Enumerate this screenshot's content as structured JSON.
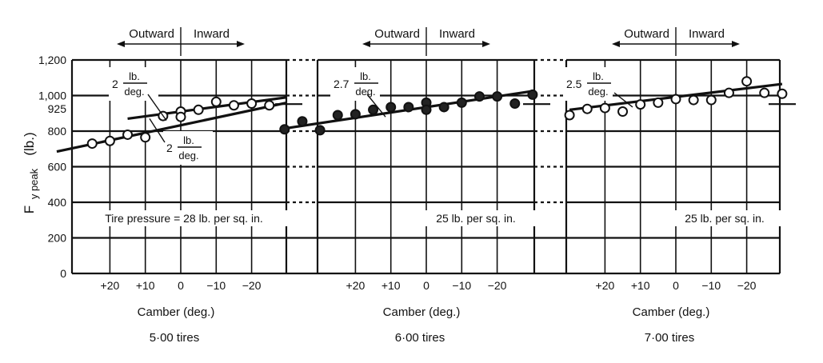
{
  "chart_data": {
    "type": "scatter",
    "ylabel": "F",
    "ylabel_sub": "y peak",
    "ylabel_unit": "(lb.)",
    "yticks": [
      "1,200",
      "1,000",
      "925",
      "800",
      "600",
      "400",
      "200",
      "0"
    ],
    "ytick_values": [
      1200,
      1000,
      925,
      800,
      600,
      400,
      200,
      0
    ],
    "ylim": [
      0,
      1200
    ],
    "grid": true,
    "panels": [
      {
        "direction_left": "Outward",
        "direction_right": "Inward",
        "xlabel": "Camber (deg.)",
        "tire": "5·00 tires",
        "xticks": [
          "+20",
          "+10",
          "0",
          "−10",
          "−20"
        ],
        "xtick_values": [
          20,
          10,
          0,
          -10,
          -20
        ],
        "pressure": "Tire pressure = 28 lb. per sq. in.",
        "marker": "open",
        "slopes": [
          {
            "coef": "2",
            "num": "lb.",
            "den": "deg."
          },
          {
            "coef": "2",
            "num": "lb.",
            "den": "deg."
          }
        ],
        "points": [
          {
            "x": 25,
            "y": 730
          },
          {
            "x": 20,
            "y": 745
          },
          {
            "x": 15,
            "y": 780
          },
          {
            "x": 10,
            "y": 765
          },
          {
            "x": 5,
            "y": 885
          },
          {
            "x": 0,
            "y": 910
          },
          {
            "x": 0,
            "y": 880
          },
          {
            "x": -5,
            "y": 920
          },
          {
            "x": -10,
            "y": 965
          },
          {
            "x": -15,
            "y": 945
          },
          {
            "x": -20,
            "y": 955
          },
          {
            "x": -25,
            "y": 945
          }
        ],
        "fits": [
          {
            "x": [
              35,
              -30
            ],
            "y": [
              685,
              960
            ]
          },
          {
            "x": [
              15,
              -30
            ],
            "y": [
              870,
              990
            ]
          }
        ]
      },
      {
        "direction_left": "Outward",
        "direction_right": "Inward",
        "xlabel": "Camber (deg.)",
        "tire": "6·00 tires",
        "xticks": [
          "+20",
          "+10",
          "0",
          "−10",
          "−20"
        ],
        "xtick_values": [
          20,
          10,
          0,
          -10,
          -20
        ],
        "pressure": "25 lb. per sq. in.",
        "marker": "filled",
        "slopes": [
          {
            "coef": "2.7",
            "num": "lb.",
            "den": "deg."
          }
        ],
        "points": [
          {
            "x": 40,
            "y": 810
          },
          {
            "x": 35,
            "y": 855
          },
          {
            "x": 30,
            "y": 805
          },
          {
            "x": 25,
            "y": 890
          },
          {
            "x": 20,
            "y": 895
          },
          {
            "x": 15,
            "y": 920
          },
          {
            "x": 10,
            "y": 935
          },
          {
            "x": 5,
            "y": 935
          },
          {
            "x": 0,
            "y": 960
          },
          {
            "x": 0,
            "y": 920
          },
          {
            "x": -5,
            "y": 935
          },
          {
            "x": -10,
            "y": 960
          },
          {
            "x": -15,
            "y": 995
          },
          {
            "x": -20,
            "y": 995
          },
          {
            "x": -25,
            "y": 955
          },
          {
            "x": -30,
            "y": 1005
          }
        ],
        "fits": [
          {
            "x": [
              40,
              -30
            ],
            "y": [
              815,
              1025
            ]
          }
        ]
      },
      {
        "direction_left": "Outward",
        "direction_right": "Inward",
        "xlabel": "Camber (deg.)",
        "tire": "7·00 tires",
        "xticks": [
          "+20",
          "+10",
          "0",
          "−10",
          "−20"
        ],
        "xtick_values": [
          20,
          10,
          0,
          -10,
          -20
        ],
        "pressure": "25 lb. per sq. in.",
        "marker": "open",
        "slopes": [
          {
            "coef": "2.5",
            "num": "lb.",
            "den": "deg."
          }
        ],
        "points": [
          {
            "x": 30,
            "y": 890
          },
          {
            "x": 25,
            "y": 925
          },
          {
            "x": 20,
            "y": 930
          },
          {
            "x": 15,
            "y": 910
          },
          {
            "x": 10,
            "y": 950
          },
          {
            "x": 5,
            "y": 960
          },
          {
            "x": 0,
            "y": 980
          },
          {
            "x": -5,
            "y": 975
          },
          {
            "x": -10,
            "y": 975
          },
          {
            "x": -15,
            "y": 1015
          },
          {
            "x": -20,
            "y": 1080
          },
          {
            "x": -25,
            "y": 1015
          },
          {
            "x": -30,
            "y": 1010
          }
        ],
        "fits": [
          {
            "x": [
              30,
              -30
            ],
            "y": [
              920,
              1065
            ]
          }
        ]
      }
    ]
  }
}
